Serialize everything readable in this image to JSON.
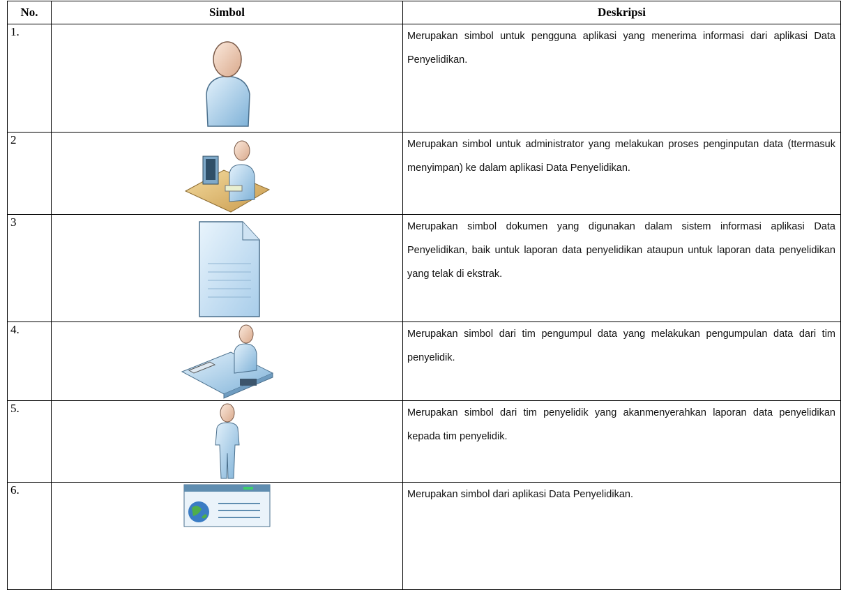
{
  "table": {
    "header": [
      "No.",
      "Simbol",
      "Deskripsi"
    ],
    "rows": [
      {
        "no": "1.",
        "description": "Merupakan simbol untuk  pengguna aplikasi yang menerima informasi dari aplikasi Data Penyelidikan."
      },
      {
        "no": "2",
        "description": "Merupakan simbol untuk  administrator yang melakukan proses penginputan data (ttermasuk menyimpan) ke dalam aplikasi Data Penyelidikan."
      },
      {
        "no": "3",
        "description": "Merupakan simbol dokumen yang digunakan dalam sistem informasi aplikasi Data Penyelidikan, baik untuk laporan data penyelidikan ataupun untuk laporan data penyelidikan yang telak di ekstrak."
      },
      {
        "no": "4.",
        "description": "Merupakan simbol dari  tim pengumpul data yang melakukan pengumpulan data dari tim penyelidik."
      },
      {
        "no": "5.",
        "description": "Merupakan simbol dari  tim penyelidik yang akanmenyerahkan laporan data penyelidikan kepada tim penyelidik."
      },
      {
        "no": "6.",
        "description": "Merupakan simbol dari  aplikasi Data Penyelidikan."
      }
    ]
  }
}
